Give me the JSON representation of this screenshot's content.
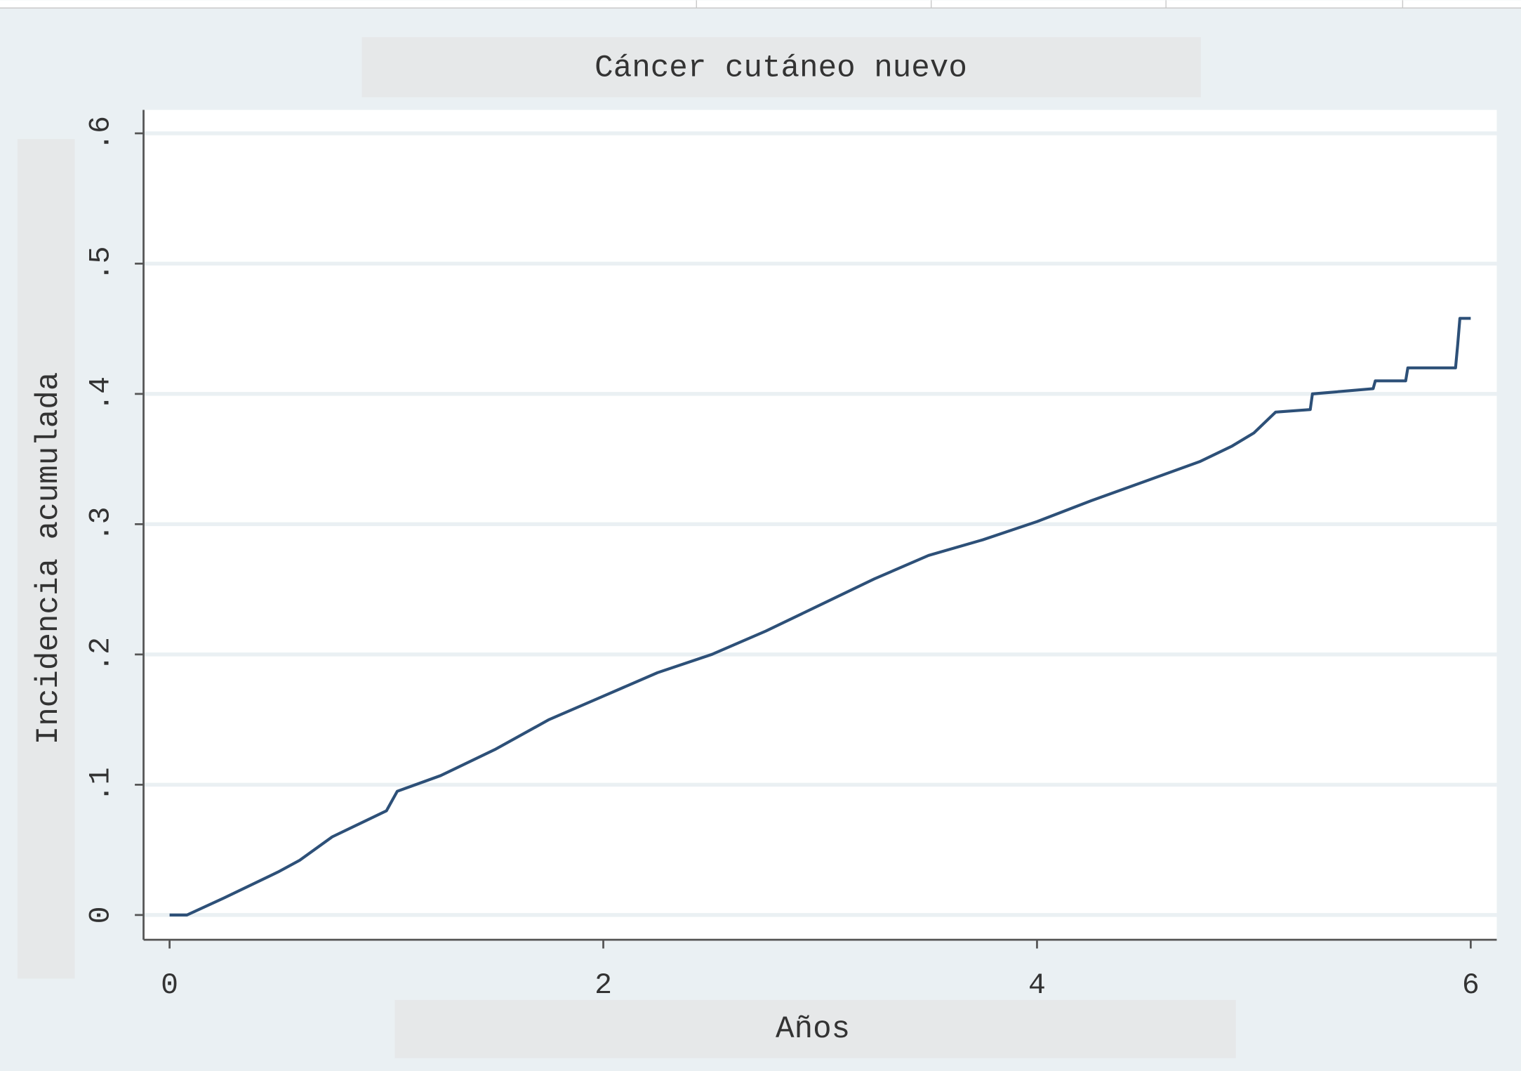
{
  "chart_data": {
    "type": "line",
    "title": "Cáncer cutáneo nuevo",
    "x_label": "Años",
    "y_label": "Incidencia acumulada",
    "x": [
      0,
      0.08,
      0.25,
      0.5,
      0.6,
      0.75,
      1.0,
      1.05,
      1.25,
      1.5,
      1.75,
      2.0,
      2.25,
      2.5,
      2.75,
      3.0,
      3.25,
      3.5,
      3.75,
      4.0,
      4.25,
      4.5,
      4.75,
      4.9,
      5.0,
      5.1,
      5.26,
      5.27,
      5.55,
      5.56,
      5.7,
      5.71,
      5.93,
      5.94,
      5.95,
      6.0
    ],
    "series": [
      {
        "color": "#2d5078",
        "values": [
          0,
          0,
          0.013,
          0.033,
          0.042,
          0.06,
          0.08,
          0.095,
          0.107,
          0.127,
          0.15,
          0.168,
          0.186,
          0.2,
          0.218,
          0.238,
          0.258,
          0.276,
          0.288,
          0.302,
          0.318,
          0.333,
          0.348,
          0.36,
          0.37,
          0.386,
          0.388,
          0.4,
          0.404,
          0.41,
          0.41,
          0.42,
          0.42,
          0.438,
          0.458,
          0.458
        ]
      }
    ],
    "xlim": [
      -0.12,
      6.12
    ],
    "ylim": [
      -0.019,
      0.618
    ],
    "xticks": [
      0,
      2,
      4,
      6
    ],
    "yticks": [
      0,
      {
        "value": 0.1,
        "label": ".1"
      },
      {
        "value": 0.2,
        "label": ".2"
      },
      {
        "value": 0.3,
        "label": ".3"
      },
      {
        "value": 0.4,
        "label": ".4"
      },
      {
        "value": 0.5,
        "label": ".5"
      },
      {
        "value": 0.6,
        "label": ".6"
      }
    ],
    "grid": true
  }
}
